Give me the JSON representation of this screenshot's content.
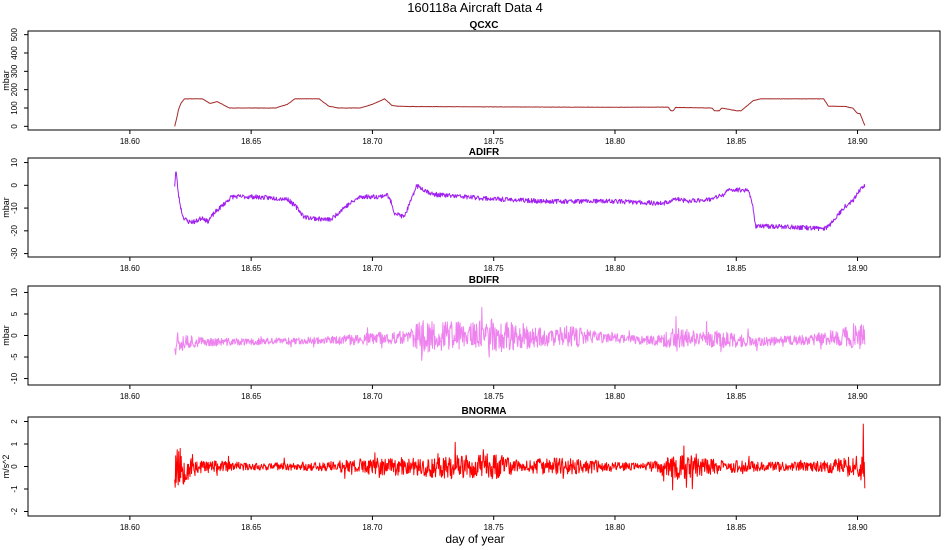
{
  "figure": {
    "title": "160118a   Aircraft Data 4",
    "xlabel": "day of year"
  },
  "chart_data": [
    {
      "type": "line",
      "title": "QCXC",
      "ylabel": "mbar",
      "xlim": [
        18.558,
        18.934
      ],
      "ylim": [
        -20,
        520
      ],
      "xticks": [
        18.6,
        18.65,
        18.7,
        18.75,
        18.8,
        18.85,
        18.9
      ],
      "xtick_labels": [
        "18.60",
        "18.65",
        "18.70",
        "18.75",
        "18.80",
        "18.85",
        "18.90"
      ],
      "yticks": [
        0,
        100,
        200,
        300,
        400,
        500
      ],
      "ytick_labels": [
        "0",
        "100",
        "200",
        "300",
        "400",
        "500"
      ],
      "color": "#a52a2a",
      "mode": "smooth",
      "x": [
        18.6185,
        18.6195,
        18.62,
        18.621,
        18.6225,
        18.63,
        18.633,
        18.636,
        18.641,
        18.65,
        18.66,
        18.665,
        18.668,
        18.67,
        18.678,
        18.682,
        18.686,
        18.695,
        18.7,
        18.705,
        18.708,
        18.71,
        18.715,
        18.75,
        18.8,
        18.822,
        18.823,
        18.824,
        18.825,
        18.84,
        18.841,
        18.843,
        18.844,
        18.85,
        18.852,
        18.857,
        18.86,
        18.87,
        18.88,
        18.886,
        18.888,
        18.895,
        18.898,
        18.9,
        18.901,
        18.903
      ],
      "values": [
        0,
        55,
        90,
        125,
        150,
        150,
        125,
        135,
        100,
        100,
        100,
        120,
        150,
        150,
        150,
        110,
        100,
        100,
        120,
        150,
        115,
        110,
        108,
        106,
        104,
        105,
        85,
        85,
        103,
        100,
        85,
        85,
        100,
        85,
        85,
        140,
        150,
        150,
        150,
        150,
        110,
        108,
        100,
        70,
        70,
        5
      ],
      "jitter": 0.8,
      "seed": 11
    },
    {
      "type": "line",
      "title": "ADIFR",
      "ylabel": "mbar",
      "xlim": [
        18.558,
        18.934
      ],
      "ylim": [
        -31.5,
        12
      ],
      "xticks": [
        18.6,
        18.65,
        18.7,
        18.75,
        18.8,
        18.85,
        18.9
      ],
      "xtick_labels": [
        "18.60",
        "18.65",
        "18.70",
        "18.75",
        "18.80",
        "18.85",
        "18.90"
      ],
      "yticks": [
        -30,
        -20,
        -10,
        0,
        10
      ],
      "ytick_labels": [
        "-30",
        "-20",
        "-10",
        "0",
        "10"
      ],
      "color": "#a020f0",
      "mode": "smooth",
      "x": [
        18.6185,
        18.619,
        18.62,
        18.621,
        18.622,
        18.624,
        18.627,
        18.63,
        18.632,
        18.635,
        18.639,
        18.642,
        18.65,
        18.665,
        18.669,
        18.672,
        18.68,
        18.683,
        18.688,
        18.695,
        18.703,
        18.706,
        18.708,
        18.709,
        18.713,
        18.717,
        18.718,
        18.725,
        18.75,
        18.77,
        18.8,
        18.82,
        18.825,
        18.83,
        18.84,
        18.845,
        18.847,
        18.855,
        18.857,
        18.858,
        18.865,
        18.886,
        18.888,
        18.895,
        18.898,
        18.9,
        18.903
      ],
      "values": [
        0,
        7,
        -4,
        -10,
        -14,
        -16,
        -16,
        -14,
        -16,
        -12,
        -8,
        -5,
        -5,
        -6,
        -10,
        -14,
        -15,
        -15,
        -10,
        -5,
        -5,
        -4,
        -8,
        -12,
        -14,
        -4,
        0,
        -4,
        -6,
        -7,
        -7,
        -8,
        -6,
        -7,
        -6,
        -4,
        -2,
        -2,
        -10,
        -18,
        -18,
        -19,
        -18,
        -9,
        -7,
        -3,
        0
      ],
      "jitter": 1.0,
      "seed": 23
    },
    {
      "type": "line",
      "title": "BDIFR",
      "ylabel": "mbar",
      "xlim": [
        18.558,
        18.934
      ],
      "ylim": [
        -11.5,
        11.5
      ],
      "xticks": [
        18.6,
        18.65,
        18.7,
        18.75,
        18.8,
        18.85,
        18.9
      ],
      "xtick_labels": [
        "18.60",
        "18.65",
        "18.70",
        "18.75",
        "18.80",
        "18.85",
        "18.90"
      ],
      "yticks": [
        -10,
        -5,
        0,
        5,
        10
      ],
      "ytick_labels": [
        "-10",
        "-5",
        "0",
        "5",
        "10"
      ],
      "color": "#ee82ee",
      "mode": "noise",
      "x": [
        18.6185,
        18.63,
        18.65,
        18.67,
        18.69,
        18.7,
        18.71,
        18.72,
        18.73,
        18.74,
        18.75,
        18.76,
        18.77,
        18.78,
        18.79,
        18.8,
        18.81,
        18.82,
        18.83,
        18.84,
        18.85,
        18.86,
        18.87,
        18.88,
        18.89,
        18.903
      ],
      "values": [
        -1,
        -1.5,
        -1.5,
        -1.2,
        -1.0,
        -0.8,
        -0.5,
        -0.3,
        0,
        0,
        0,
        -0.3,
        -0.5,
        -0.5,
        -0.3,
        -0.5,
        -1.0,
        -1.0,
        -0.7,
        -0.8,
        -1.2,
        -1.5,
        -1.2,
        -1.0,
        -0.5,
        -0.2
      ],
      "amp_x": [
        18.6185,
        18.621,
        18.63,
        18.65,
        18.68,
        18.7,
        18.715,
        18.72,
        18.74,
        18.75,
        18.76,
        18.775,
        18.78,
        18.79,
        18.81,
        18.82,
        18.825,
        18.835,
        18.845,
        18.86,
        18.88,
        18.89,
        18.903
      ],
      "amp": [
        4,
        2.5,
        1,
        0.8,
        0.8,
        1.5,
        1.5,
        4,
        3,
        4,
        3,
        2,
        3,
        1.5,
        1,
        1.5,
        3,
        2,
        2,
        1,
        1.2,
        2,
        3
      ],
      "seed": 37
    },
    {
      "type": "line",
      "title": "BNORMA",
      "ylabel": "m/s^2",
      "xlim": [
        18.558,
        18.934
      ],
      "ylim": [
        -2.2,
        2.2
      ],
      "xticks": [
        18.6,
        18.65,
        18.7,
        18.75,
        18.8,
        18.85,
        18.9
      ],
      "xtick_labels": [
        "18.60",
        "18.65",
        "18.70",
        "18.75",
        "18.80",
        "18.85",
        "18.90"
      ],
      "yticks": [
        -2,
        -1,
        0,
        1,
        2
      ],
      "ytick_labels": [
        "-2",
        "-1",
        "0",
        "1",
        "2"
      ],
      "color": "#ff0000",
      "mode": "noise",
      "x": [
        18.6185,
        18.903
      ],
      "values": [
        0,
        0
      ],
      "amp_x": [
        18.6185,
        18.623,
        18.63,
        18.65,
        18.68,
        18.7,
        18.715,
        18.725,
        18.74,
        18.75,
        18.76,
        18.775,
        18.79,
        18.81,
        18.82,
        18.825,
        18.84,
        18.86,
        18.88,
        18.9,
        18.903
      ],
      "amp": [
        1.2,
        0.7,
        0.3,
        0.15,
        0.2,
        0.4,
        0.4,
        0.6,
        0.5,
        0.6,
        0.3,
        0.4,
        0.3,
        0.15,
        0.3,
        0.6,
        0.35,
        0.2,
        0.2,
        0.5,
        1.0
      ],
      "seed": 53
    }
  ]
}
